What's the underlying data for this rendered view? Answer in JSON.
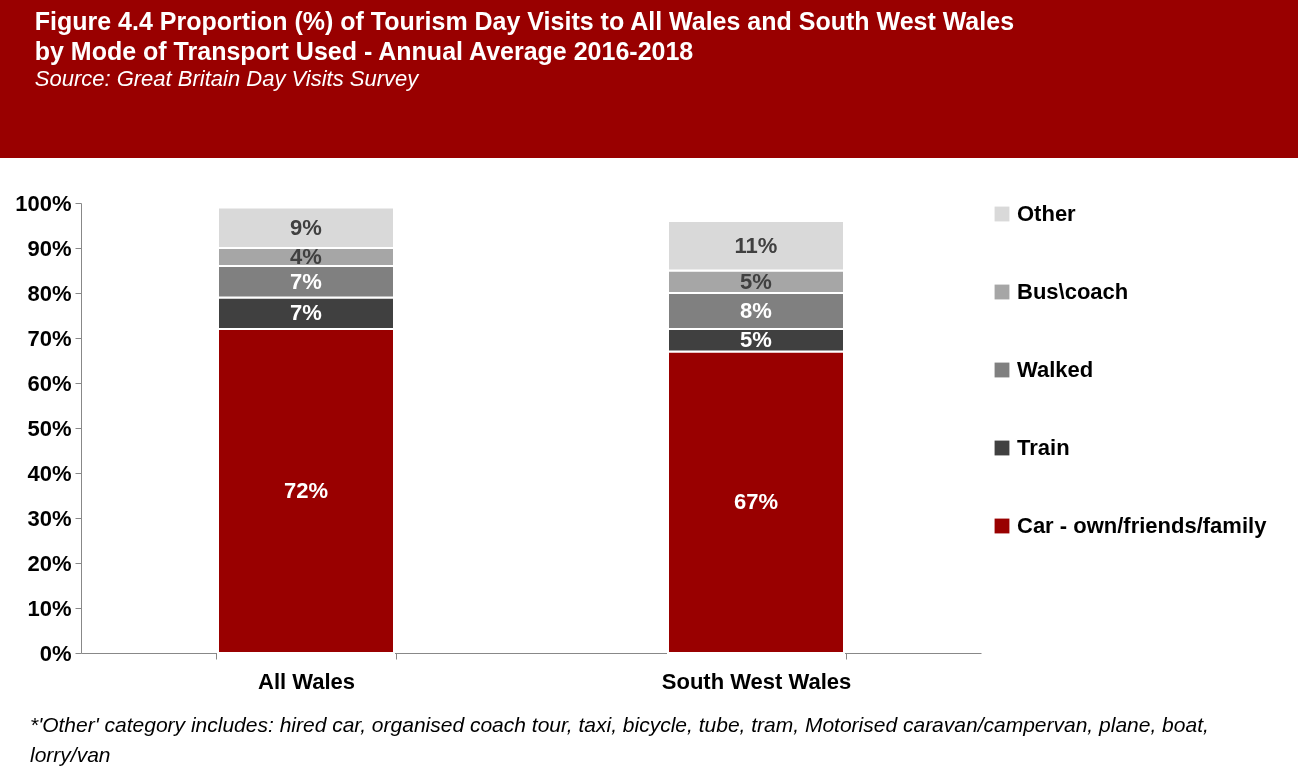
{
  "chart_data": {
    "type": "bar",
    "title": "Figure 4.4 Proportion (%)  of Tourism Day Visits to All Wales and South West Wales by Mode of Transport Used - Annual Average 2016-2018",
    "subtitle": "Source: Great Britain Day Visits Survey",
    "categories": [
      "All Wales",
      "South West Wales"
    ],
    "stacked": true,
    "series": [
      {
        "name": "Car - own/friends/family",
        "color": "#990000",
        "values": [
          72,
          67
        ],
        "value_labels": [
          "72%",
          "67%"
        ]
      },
      {
        "name": "Train",
        "color": "#404040",
        "values": [
          7,
          5
        ],
        "value_labels": [
          "7%",
          "5%"
        ]
      },
      {
        "name": "Walked",
        "color": "#808080",
        "values": [
          7,
          8
        ],
        "value_labels": [
          "7%",
          "8%"
        ]
      },
      {
        "name": "Bus\\coach",
        "color": "#a6a6a6",
        "values": [
          4,
          5
        ],
        "value_labels": [
          "4%",
          "5%"
        ]
      },
      {
        "name": "Other",
        "color": "#d9d9d9",
        "values": [
          9,
          11
        ],
        "value_labels": [
          "9%",
          "11%"
        ]
      }
    ],
    "ylim": [
      0,
      100
    ],
    "yticks": [
      {
        "value": 0,
        "label": "0%"
      },
      {
        "value": 10,
        "label": "10%"
      },
      {
        "value": 20,
        "label": "20%"
      },
      {
        "value": 30,
        "label": "30%"
      },
      {
        "value": 40,
        "label": "40%"
      },
      {
        "value": 50,
        "label": "50%"
      },
      {
        "value": 60,
        "label": "60%"
      },
      {
        "value": 70,
        "label": "70%"
      },
      {
        "value": 80,
        "label": "80%"
      },
      {
        "value": 90,
        "label": "90%"
      },
      {
        "value": 100,
        "label": "100%"
      }
    ],
    "grid": false,
    "legend": "right",
    "annotations": [
      "*'Other' category includes: hired car, organised coach tour, taxi, bicycle, tube, tram, Motorised caravan/campervan, plane, boat, lorry/van"
    ]
  }
}
